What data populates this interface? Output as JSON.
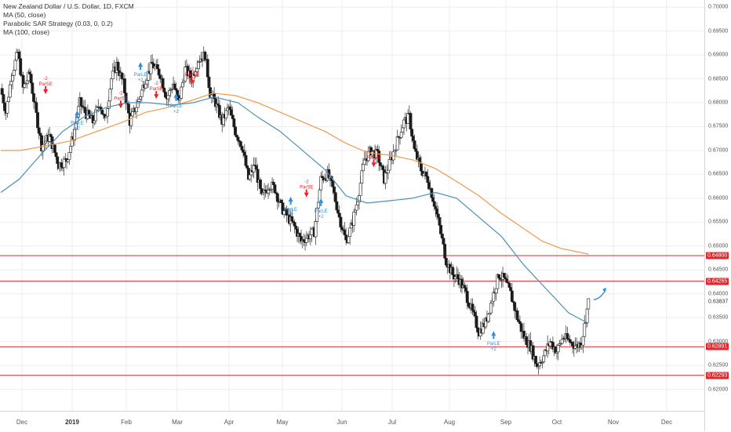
{
  "legend": {
    "title": "New Zealand Dollar / U.S. Dollar, 1D, FXCM",
    "ma50": "MA (50, close)",
    "sar": "Parabolic SAR Strategy (0.03, 0, 0.2)",
    "ma100": "MA (100, close)"
  },
  "colors": {
    "up": "#ffffff",
    "down": "#1c1c1c",
    "wick": "#444444",
    "ma50": "#4a90b8",
    "ma100": "#f09a4a",
    "hline": "#e8242b",
    "long_arrow": "#2a8de0",
    "short_arrow": "#e8242b",
    "grid": "#eeeeee"
  },
  "chart_data": {
    "type": "candlestick",
    "title": "New Zealand Dollar / U.S. Dollar, 1D, FXCM",
    "ylim": [
      0.6155,
      0.7015
    ],
    "y_ticks": [
      "0.70000",
      "0.69500",
      "0.69000",
      "0.68500",
      "0.68000",
      "0.67500",
      "0.67000",
      "0.66500",
      "0.66000",
      "0.65500",
      "0.65000",
      "0.64500",
      "0.64000",
      "0.63500",
      "0.63000",
      "0.62500",
      "0.62000"
    ],
    "x_ticks": [
      {
        "label": "Dec",
        "year": false
      },
      {
        "label": "2019",
        "year": true
      },
      {
        "label": "Feb",
        "year": false
      },
      {
        "label": "Mar",
        "year": false
      },
      {
        "label": "Apr",
        "year": false
      },
      {
        "label": "May",
        "year": false
      },
      {
        "label": "Jun",
        "year": false
      },
      {
        "label": "Jul",
        "year": false
      },
      {
        "label": "Aug",
        "year": false
      },
      {
        "label": "Sep",
        "year": false
      },
      {
        "label": "Oct",
        "year": false
      },
      {
        "label": "Nov",
        "year": false
      },
      {
        "label": "Dec",
        "year": false
      }
    ],
    "price_path": [
      [
        0,
        0.683
      ],
      [
        4,
        0.678
      ],
      [
        8,
        0.6855
      ],
      [
        13,
        0.6905
      ],
      [
        17,
        0.683
      ],
      [
        22,
        0.686
      ],
      [
        26,
        0.679
      ],
      [
        31,
        0.671
      ],
      [
        37,
        0.673
      ],
      [
        44,
        0.667
      ],
      [
        50,
        0.668
      ],
      [
        55,
        0.673
      ],
      [
        60,
        0.68
      ],
      [
        64,
        0.678
      ],
      [
        70,
        0.676
      ],
      [
        75,
        0.68
      ],
      [
        79,
        0.676
      ],
      [
        84,
        0.685
      ],
      [
        88,
        0.688
      ],
      [
        93,
        0.684
      ],
      [
        98,
        0.676
      ],
      [
        104,
        0.68
      ],
      [
        110,
        0.685
      ],
      [
        115,
        0.688
      ],
      [
        121,
        0.686
      ],
      [
        126,
        0.681
      ],
      [
        131,
        0.684
      ],
      [
        135,
        0.68
      ],
      [
        140,
        0.687
      ],
      [
        145,
        0.685
      ],
      [
        150,
        0.689
      ],
      [
        155,
        0.69
      ],
      [
        159,
        0.682
      ],
      [
        163,
        0.68
      ],
      [
        168,
        0.676
      ],
      [
        173,
        0.679
      ],
      [
        178,
        0.674
      ],
      [
        183,
        0.671
      ],
      [
        188,
        0.664
      ],
      [
        193,
        0.667
      ],
      [
        198,
        0.66
      ],
      [
        204,
        0.663
      ],
      [
        208,
        0.662
      ],
      [
        213,
        0.658
      ],
      [
        218,
        0.656
      ],
      [
        223,
        0.654
      ],
      [
        228,
        0.651
      ],
      [
        233,
        0.652
      ],
      [
        238,
        0.653
      ],
      [
        243,
        0.664
      ],
      [
        248,
        0.665
      ],
      [
        252,
        0.662
      ],
      [
        257,
        0.656
      ],
      [
        262,
        0.651
      ],
      [
        266,
        0.654
      ],
      [
        271,
        0.66
      ],
      [
        276,
        0.668
      ],
      [
        281,
        0.67
      ],
      [
        286,
        0.669
      ],
      [
        291,
        0.664
      ],
      [
        296,
        0.668
      ],
      [
        301,
        0.672
      ],
      [
        306,
        0.676
      ],
      [
        310,
        0.677
      ],
      [
        314,
        0.67
      ],
      [
        319,
        0.666
      ],
      [
        324,
        0.664
      ],
      [
        329,
        0.659
      ],
      [
        333,
        0.654
      ],
      [
        338,
        0.647
      ],
      [
        343,
        0.644
      ],
      [
        348,
        0.643
      ],
      [
        353,
        0.64
      ],
      [
        358,
        0.636
      ],
      [
        363,
        0.632
      ],
      [
        368,
        0.634
      ],
      [
        373,
        0.639
      ],
      [
        378,
        0.644
      ],
      [
        382,
        0.643
      ],
      [
        387,
        0.64
      ],
      [
        392,
        0.635
      ],
      [
        397,
        0.631
      ],
      [
        402,
        0.629
      ],
      [
        407,
        0.625
      ],
      [
        412,
        0.627
      ],
      [
        417,
        0.63
      ],
      [
        422,
        0.628
      ],
      [
        427,
        0.631
      ],
      [
        432,
        0.63
      ],
      [
        437,
        0.629
      ],
      [
        441,
        0.63
      ],
      [
        446,
        0.6383
      ]
    ],
    "ma50": [
      [
        0,
        0.6612
      ],
      [
        14,
        0.664
      ],
      [
        30,
        0.669
      ],
      [
        47,
        0.674
      ],
      [
        63,
        0.677
      ],
      [
        80,
        0.679
      ],
      [
        96,
        0.68
      ],
      [
        112,
        0.68
      ],
      [
        130,
        0.6795
      ],
      [
        146,
        0.68
      ],
      [
        162,
        0.6812
      ],
      [
        180,
        0.68
      ],
      [
        195,
        0.677
      ],
      [
        212,
        0.674
      ],
      [
        229,
        0.67
      ],
      [
        246,
        0.666
      ],
      [
        262,
        0.6605
      ],
      [
        278,
        0.659
      ],
      [
        296,
        0.6595
      ],
      [
        312,
        0.66
      ],
      [
        330,
        0.6612
      ],
      [
        346,
        0.66
      ],
      [
        363,
        0.656
      ],
      [
        380,
        0.652
      ],
      [
        397,
        0.646
      ],
      [
        414,
        0.641
      ],
      [
        431,
        0.636
      ],
      [
        446,
        0.6338
      ]
    ],
    "ma100": [
      [
        0,
        0.67
      ],
      [
        15,
        0.67
      ],
      [
        35,
        0.671
      ],
      [
        53,
        0.672
      ],
      [
        73,
        0.674
      ],
      [
        93,
        0.676
      ],
      [
        110,
        0.678
      ],
      [
        127,
        0.679
      ],
      [
        145,
        0.6805
      ],
      [
        161,
        0.682
      ],
      [
        178,
        0.6815
      ],
      [
        195,
        0.68
      ],
      [
        212,
        0.678
      ],
      [
        229,
        0.676
      ],
      [
        246,
        0.674
      ],
      [
        262,
        0.6715
      ],
      [
        279,
        0.6695
      ],
      [
        296,
        0.669
      ],
      [
        313,
        0.668
      ],
      [
        330,
        0.6662
      ],
      [
        346,
        0.6635
      ],
      [
        363,
        0.6605
      ],
      [
        379,
        0.657
      ],
      [
        395,
        0.654
      ],
      [
        411,
        0.651
      ],
      [
        425,
        0.6495
      ],
      [
        446,
        0.6483
      ]
    ],
    "hlines": [
      {
        "value": 0.648,
        "label": "0.64800"
      },
      {
        "value": 0.64265,
        "label": "0.64265"
      },
      {
        "value": 0.62891,
        "label": "0.62891"
      },
      {
        "value": 0.62293,
        "label": "0.62293"
      }
    ],
    "last_price": {
      "value": 0.63837,
      "label": "0.63837"
    },
    "signals": [
      {
        "type": "short",
        "index": 34,
        "price": 0.6818,
        "name": "ParSE",
        "qty": "-2"
      },
      {
        "type": "long",
        "index": 58,
        "price": 0.6784,
        "name": "ParLE",
        "qty": "+2"
      },
      {
        "type": "short",
        "index": 91,
        "price": 0.6788,
        "name": "ParSE",
        "qty": "-2"
      },
      {
        "type": "long",
        "index": 106,
        "price": 0.6885,
        "name": "ParLE",
        "qty": "+2"
      },
      {
        "type": "short",
        "index": 118,
        "price": 0.6808,
        "name": "ParSE",
        "qty": "-2"
      },
      {
        "type": "long",
        "index": 133,
        "price": 0.682,
        "name": "ParLE",
        "qty": "+2"
      },
      {
        "type": "short",
        "index": 145,
        "price": 0.6838,
        "name": "ParSE",
        "qty": "-2"
      },
      {
        "type": "long",
        "index": 220,
        "price": 0.6603,
        "name": "ParLE",
        "qty": "+2"
      },
      {
        "type": "short",
        "index": 232,
        "price": 0.6602,
        "name": "ParSE",
        "qty": "-2"
      },
      {
        "type": "long",
        "index": 243,
        "price": 0.66,
        "name": "ParLE",
        "qty": "+2"
      },
      {
        "type": "short",
        "index": 283,
        "price": 0.6665,
        "name": "ParSE",
        "qty": "-2"
      },
      {
        "type": "long",
        "index": 374,
        "price": 0.6322,
        "name": "ParLE",
        "qty": "+2"
      }
    ],
    "forecast_arrow": {
      "from_index": 450,
      "from": 0.6388,
      "to_index": 459,
      "to": 0.6408
    }
  }
}
